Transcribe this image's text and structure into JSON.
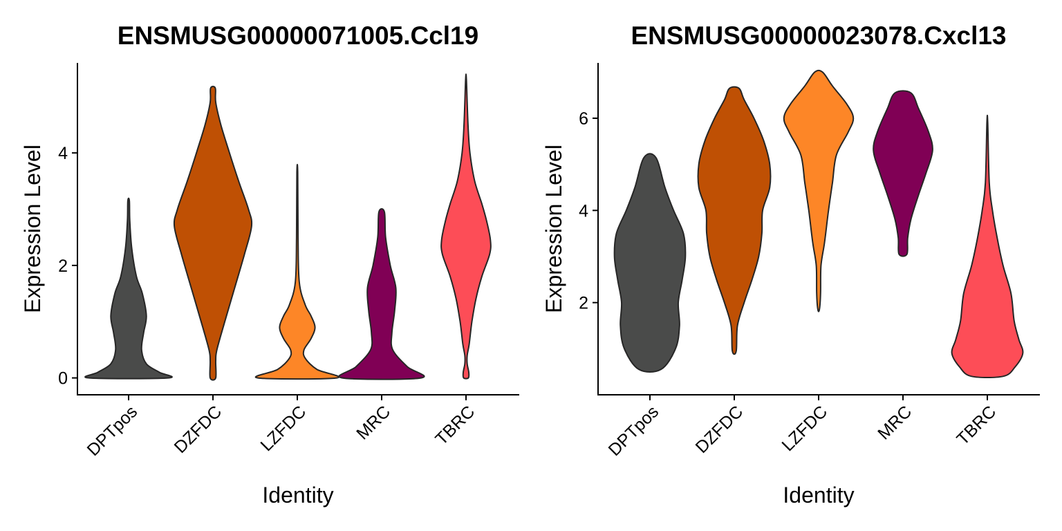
{
  "chart_data": [
    {
      "type": "violin",
      "title": "ENSMUSG00000071005.Ccl19",
      "xlabel": "Identity",
      "ylabel": "Expression Level",
      "categories": [
        "DPTpos",
        "DZFDC",
        "LZFDC",
        "MRC",
        "TBRC"
      ],
      "colors": [
        "#4a4b4a",
        "#bf5004",
        "#fd8627",
        "#800055",
        "#fd4d57"
      ],
      "ylim": [
        -0.3,
        5.6
      ],
      "yticks": [
        0,
        2,
        4
      ],
      "ytick_labels": [
        "0",
        "2",
        "4"
      ],
      "violins": [
        {
          "name": "DPTpos",
          "ymin": 0,
          "ymax": 3.15,
          "profile": [
            [
              0,
              1.0
            ],
            [
              0.1,
              0.78
            ],
            [
              0.25,
              0.45
            ],
            [
              0.5,
              0.33
            ],
            [
              0.8,
              0.38
            ],
            [
              1.1,
              0.45
            ],
            [
              1.5,
              0.35
            ],
            [
              1.8,
              0.2
            ],
            [
              2.3,
              0.08
            ],
            [
              2.8,
              0.03
            ],
            [
              3.15,
              0.02
            ]
          ]
        },
        {
          "name": "DZFDC",
          "ymin": 0,
          "ymax": 5.15,
          "profile": [
            [
              0,
              0.07
            ],
            [
              0.3,
              0.07
            ],
            [
              0.5,
              0.1
            ],
            [
              1.0,
              0.3
            ],
            [
              1.6,
              0.55
            ],
            [
              2.2,
              0.8
            ],
            [
              2.7,
              0.98
            ],
            [
              3.0,
              0.9
            ],
            [
              3.5,
              0.65
            ],
            [
              4.0,
              0.42
            ],
            [
              4.5,
              0.2
            ],
            [
              4.9,
              0.07
            ],
            [
              5.15,
              0.06
            ]
          ]
        },
        {
          "name": "LZFDC",
          "ymin": 0,
          "ymax": 3.65,
          "profile": [
            [
              0,
              1.0
            ],
            [
              0.15,
              0.5
            ],
            [
              0.35,
              0.2
            ],
            [
              0.5,
              0.17
            ],
            [
              0.7,
              0.35
            ],
            [
              0.9,
              0.45
            ],
            [
              1.1,
              0.35
            ],
            [
              1.3,
              0.2
            ],
            [
              1.7,
              0.05
            ],
            [
              2.5,
              0.02
            ],
            [
              3.65,
              0.01
            ]
          ]
        },
        {
          "name": "MRC",
          "ymin": 0,
          "ymax": 2.95,
          "profile": [
            [
              0,
              1.0
            ],
            [
              0.2,
              0.65
            ],
            [
              0.5,
              0.28
            ],
            [
              0.8,
              0.26
            ],
            [
              1.2,
              0.33
            ],
            [
              1.6,
              0.36
            ],
            [
              2.0,
              0.22
            ],
            [
              2.5,
              0.1
            ],
            [
              2.95,
              0.07
            ]
          ]
        },
        {
          "name": "TBRC",
          "ymin": 0,
          "ymax": 5.3,
          "profile": [
            [
              0,
              0.06
            ],
            [
              0.1,
              0.07
            ],
            [
              0.25,
              0.03
            ],
            [
              0.4,
              0.03
            ],
            [
              0.6,
              0.08
            ],
            [
              1.0,
              0.15
            ],
            [
              1.4,
              0.25
            ],
            [
              1.8,
              0.4
            ],
            [
              2.2,
              0.6
            ],
            [
              2.45,
              0.62
            ],
            [
              2.8,
              0.52
            ],
            [
              3.1,
              0.4
            ],
            [
              3.5,
              0.22
            ],
            [
              4.0,
              0.1
            ],
            [
              4.5,
              0.05
            ],
            [
              5.3,
              0.01
            ]
          ]
        }
      ]
    },
    {
      "type": "violin",
      "title": "ENSMUSG00000023078.Cxcl13",
      "xlabel": "Identity",
      "ylabel": "Expression Level",
      "categories": [
        "DPTpos",
        "DZFDC",
        "LZFDC",
        "MRC",
        "TBRC"
      ],
      "colors": [
        "#4a4b4a",
        "#bf5004",
        "#fd8627",
        "#800055",
        "#fd4d57"
      ],
      "ylim": [
        0.0,
        7.2
      ],
      "yticks": [
        2,
        4,
        6
      ],
      "ytick_labels": [
        "2",
        "4",
        "6"
      ],
      "violins": [
        {
          "name": "DPTpos",
          "ymin": 0.55,
          "ymax": 5.15,
          "profile": [
            [
              0.55,
              0.28
            ],
            [
              1.0,
              0.65
            ],
            [
              1.5,
              0.75
            ],
            [
              2.0,
              0.72
            ],
            [
              2.5,
              0.82
            ],
            [
              3.0,
              0.9
            ],
            [
              3.5,
              0.85
            ],
            [
              4.0,
              0.6
            ],
            [
              4.5,
              0.38
            ],
            [
              5.15,
              0.15
            ]
          ]
        },
        {
          "name": "DZFDC",
          "ymin": 0.95,
          "ymax": 6.65,
          "profile": [
            [
              0.95,
              0.05
            ],
            [
              1.5,
              0.08
            ],
            [
              2.0,
              0.25
            ],
            [
              2.5,
              0.45
            ],
            [
              3.0,
              0.62
            ],
            [
              3.5,
              0.7
            ],
            [
              4.0,
              0.72
            ],
            [
              4.5,
              0.9
            ],
            [
              5.0,
              0.9
            ],
            [
              5.5,
              0.75
            ],
            [
              6.0,
              0.5
            ],
            [
              6.4,
              0.25
            ],
            [
              6.65,
              0.12
            ]
          ]
        },
        {
          "name": "LZFDC",
          "ymin": 1.85,
          "ymax": 7.0,
          "profile": [
            [
              1.85,
              0.02
            ],
            [
              2.2,
              0.05
            ],
            [
              2.8,
              0.06
            ],
            [
              3.3,
              0.15
            ],
            [
              4.0,
              0.25
            ],
            [
              4.6,
              0.35
            ],
            [
              5.2,
              0.45
            ],
            [
              5.7,
              0.75
            ],
            [
              6.0,
              0.88
            ],
            [
              6.3,
              0.72
            ],
            [
              6.7,
              0.35
            ],
            [
              7.0,
              0.1
            ]
          ]
        },
        {
          "name": "MRC",
          "ymin": 3.05,
          "ymax": 6.55,
          "profile": [
            [
              3.05,
              0.1
            ],
            [
              3.4,
              0.12
            ],
            [
              3.8,
              0.2
            ],
            [
              4.3,
              0.38
            ],
            [
              4.8,
              0.58
            ],
            [
              5.3,
              0.75
            ],
            [
              5.7,
              0.65
            ],
            [
              6.2,
              0.4
            ],
            [
              6.55,
              0.2
            ]
          ]
        },
        {
          "name": "TBRC",
          "ymin": 0.4,
          "ymax": 5.9,
          "profile": [
            [
              0.4,
              0.4
            ],
            [
              0.6,
              0.7
            ],
            [
              0.9,
              0.9
            ],
            [
              1.2,
              0.8
            ],
            [
              1.6,
              0.68
            ],
            [
              2.2,
              0.6
            ],
            [
              2.8,
              0.4
            ],
            [
              3.4,
              0.25
            ],
            [
              4.0,
              0.13
            ],
            [
              4.6,
              0.05
            ],
            [
              5.9,
              0.01
            ]
          ]
        }
      ]
    }
  ]
}
